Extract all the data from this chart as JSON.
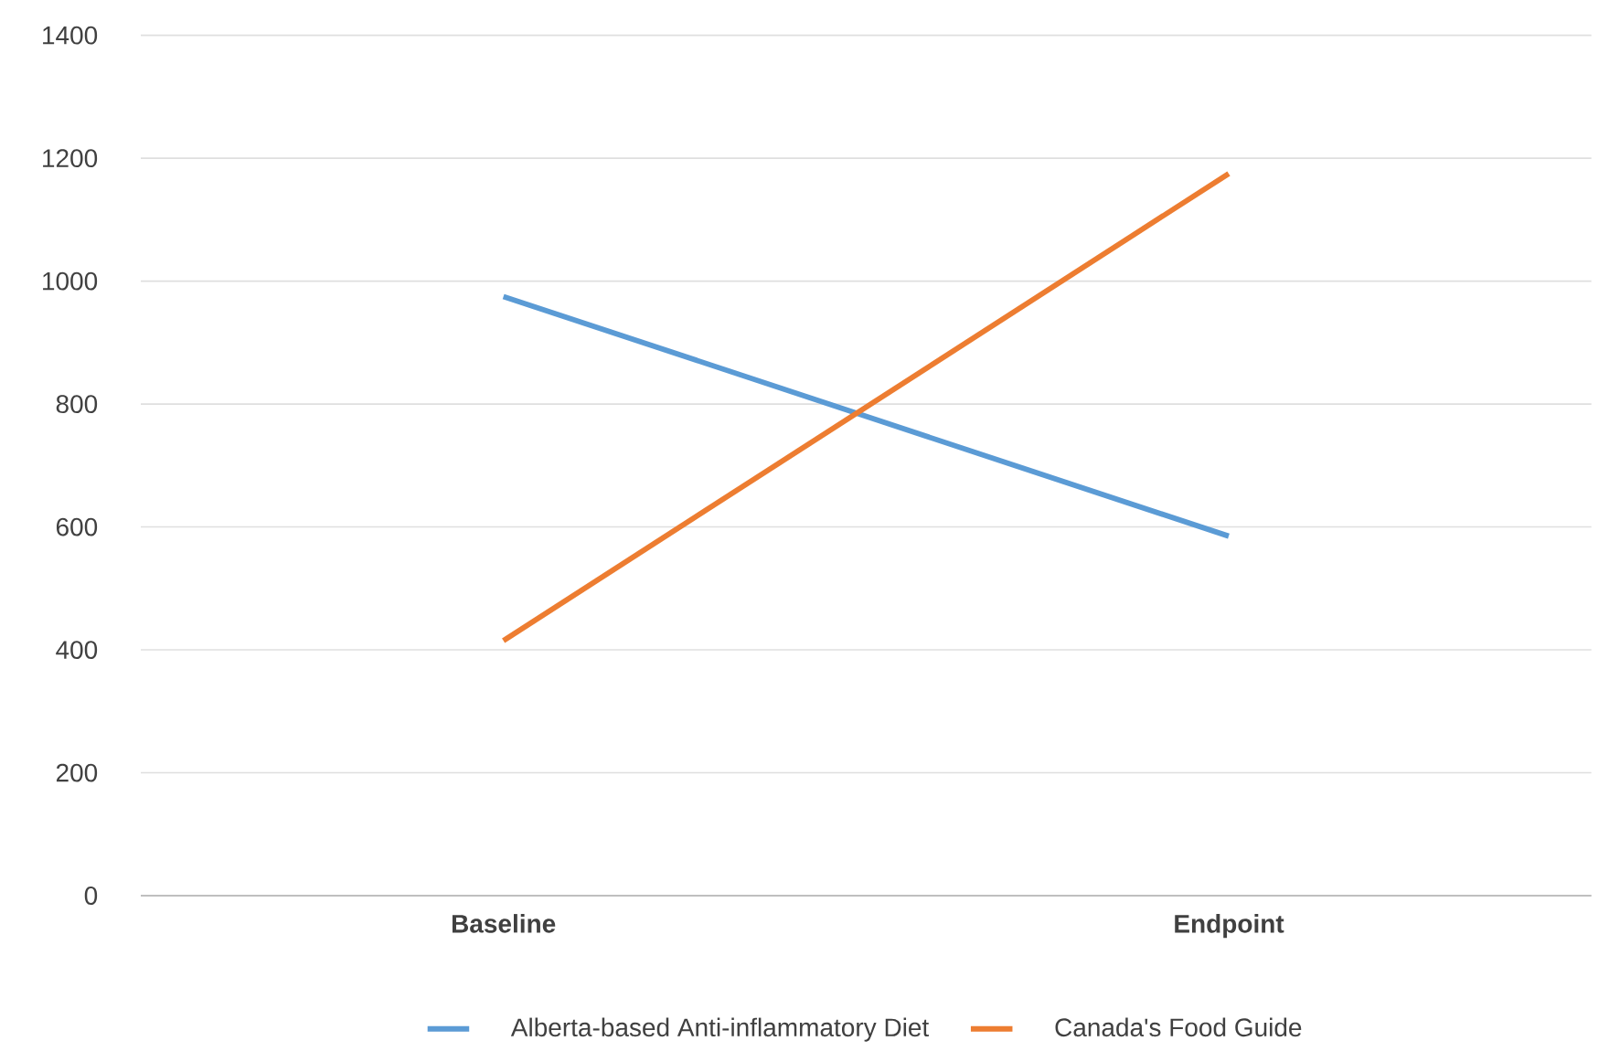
{
  "chart_data": {
    "type": "line",
    "categories": [
      "Baseline",
      "Endpoint"
    ],
    "series": [
      {
        "name": "Alberta-based Anti-inflammatory Diet",
        "color": "#5b9bd5",
        "values": [
          975,
          585
        ]
      },
      {
        "name": "Canada's Food Guide",
        "color": "#ed7d31",
        "values": [
          415,
          1175
        ]
      }
    ],
    "ylim": [
      0,
      1400
    ],
    "yticks": [
      0,
      200,
      400,
      600,
      800,
      1000,
      1200,
      1400
    ],
    "grid": "y",
    "legend": "bottom",
    "marker": "none",
    "line_style": "solid"
  }
}
